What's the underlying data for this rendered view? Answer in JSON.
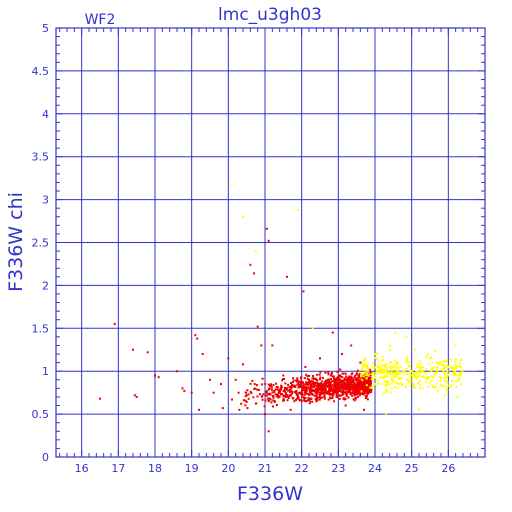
{
  "chart_data": {
    "type": "scatter",
    "title": "lmc_u3gh03",
    "panel_label": "WF2",
    "xlabel": "F336W",
    "ylabel": "F336W chi",
    "xlim": [
      15.3,
      27.0
    ],
    "ylim": [
      0,
      5
    ],
    "x_ticks": [
      16,
      17,
      18,
      19,
      20,
      21,
      22,
      23,
      24,
      25,
      26
    ],
    "x_tick_labels": [
      "16",
      "17",
      "18",
      "19",
      "20",
      "21",
      "22",
      "23",
      "24",
      "25",
      "26"
    ],
    "y_ticks": [
      0,
      0.5,
      1,
      1.5,
      2,
      2.5,
      3,
      3.5,
      4,
      4.5,
      5
    ],
    "y_tick_labels": [
      "0",
      "0.5",
      "1",
      "1.5",
      "2",
      "2.5",
      "3",
      "3.5",
      "4",
      "4.5",
      "5"
    ],
    "grid": true,
    "colors": {
      "axis": "#3333cc",
      "grid": "#3333cc",
      "red": "#ee0000",
      "yellow": "#ffff00"
    },
    "series": [
      {
        "color": "#ee0000",
        "points": [
          [
            16.5,
            0.68
          ],
          [
            16.9,
            1.55
          ],
          [
            17.4,
            1.25
          ],
          [
            17.45,
            0.72
          ],
          [
            17.5,
            0.7
          ],
          [
            17.8,
            1.22
          ],
          [
            18.0,
            0.95
          ],
          [
            18.1,
            0.93
          ],
          [
            18.6,
            1.0
          ],
          [
            18.75,
            0.8
          ],
          [
            18.8,
            0.77
          ],
          [
            19.0,
            0.75
          ],
          [
            19.1,
            1.42
          ],
          [
            19.15,
            1.38
          ],
          [
            19.2,
            0.55
          ],
          [
            19.3,
            1.2
          ],
          [
            19.5,
            0.9
          ],
          [
            19.6,
            0.75
          ],
          [
            19.8,
            0.85
          ],
          [
            19.85,
            0.57
          ],
          [
            20.0,
            1.15
          ],
          [
            20.1,
            0.67
          ],
          [
            20.2,
            0.9
          ],
          [
            20.3,
            0.55
          ],
          [
            20.35,
            0.62
          ],
          [
            20.4,
            1.08
          ],
          [
            20.5,
            0.72
          ],
          [
            20.6,
            2.24
          ],
          [
            20.7,
            2.14
          ],
          [
            20.8,
            1.52
          ],
          [
            20.9,
            1.3
          ],
          [
            21.0,
            0.5
          ],
          [
            21.05,
            2.66
          ],
          [
            21.1,
            2.52
          ],
          [
            21.1,
            0.3
          ],
          [
            21.2,
            1.3
          ],
          [
            21.4,
            0.75
          ],
          [
            21.5,
            0.95
          ],
          [
            21.6,
            2.1
          ],
          [
            21.7,
            0.55
          ],
          [
            21.8,
            0.65
          ],
          [
            21.9,
            0.85
          ],
          [
            22.05,
            1.93
          ],
          [
            22.1,
            1.05
          ],
          [
            22.2,
            0.9
          ],
          [
            22.4,
            0.65
          ],
          [
            22.5,
            1.15
          ],
          [
            22.6,
            0.78
          ],
          [
            22.8,
            0.95
          ],
          [
            22.85,
            1.45
          ],
          [
            22.95,
            0.7
          ],
          [
            23.05,
            1.02
          ],
          [
            23.1,
            1.2
          ],
          [
            23.2,
            0.6
          ],
          [
            23.3,
            0.88
          ],
          [
            23.35,
            1.3
          ],
          [
            23.45,
            0.72
          ],
          [
            23.55,
            0.95
          ],
          [
            23.6,
            1.1
          ],
          [
            23.7,
            0.55
          ]
        ]
      },
      {
        "color": "#ffff00",
        "points": [
          [
            20.1,
            3.18
          ],
          [
            20.4,
            2.8
          ],
          [
            20.75,
            2.4
          ],
          [
            21.9,
            2.88
          ],
          [
            22.3,
            1.5
          ],
          [
            23.8,
            1.0
          ],
          [
            24.0,
            1.2
          ],
          [
            24.2,
            0.85
          ],
          [
            24.4,
            1.3
          ],
          [
            24.55,
            1.45
          ],
          [
            24.7,
            1.05
          ],
          [
            24.9,
            0.9
          ],
          [
            25.1,
            1.25
          ],
          [
            25.3,
            0.8
          ],
          [
            25.5,
            1.15
          ],
          [
            25.7,
            1.0
          ],
          [
            25.9,
            0.72
          ],
          [
            26.1,
            1.05
          ],
          [
            26.3,
            0.9
          ],
          [
            26.25,
            0.7
          ],
          [
            26.2,
            1.3
          ],
          [
            26.35,
            1.05
          ],
          [
            24.85,
            1.4
          ],
          [
            25.2,
            0.55
          ],
          [
            24.3,
            0.5
          ]
        ]
      }
    ]
  }
}
